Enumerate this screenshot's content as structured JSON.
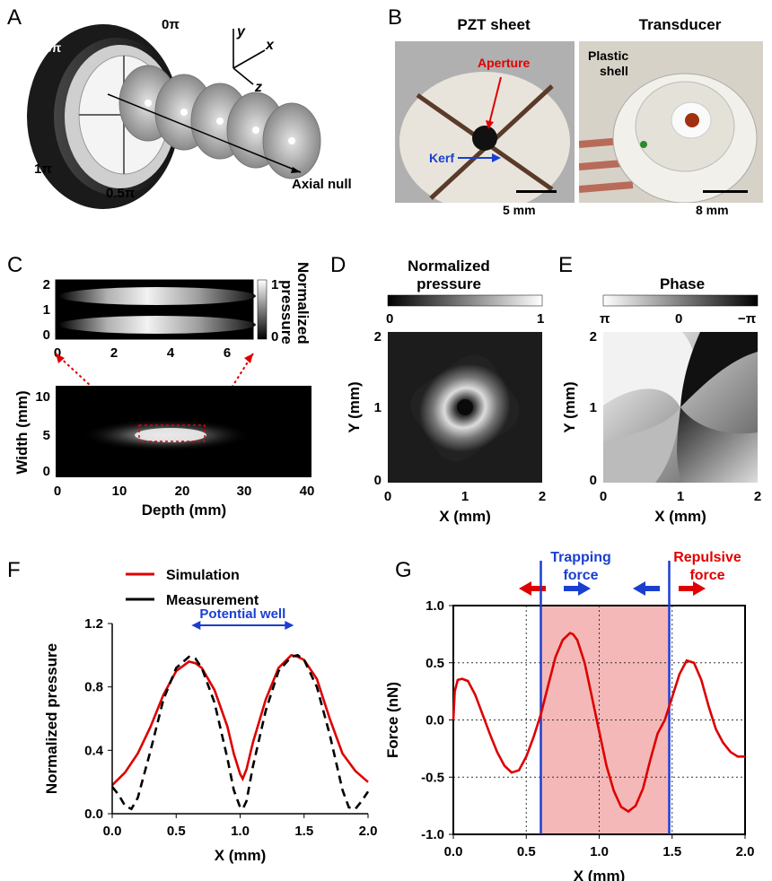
{
  "panels": {
    "A": {
      "letter": "A",
      "labels": {
        "p0": "0π",
        "p15": "1.5π",
        "p1": "1π",
        "p05": "0.5π",
        "axial": "Axial null",
        "ax_y": "y",
        "ax_x": "x",
        "ax_z": "z"
      }
    },
    "B": {
      "letter": "B",
      "pzt_title": "PZT sheet",
      "transducer_title": "Transducer",
      "aperture": "Aperture",
      "kerf": "Kerf",
      "plastic": "Plastic",
      "shell": "shell",
      "scale_left": "5 mm",
      "scale_right": "8 mm"
    },
    "C": {
      "letter": "C",
      "ylabel": "Width (mm)",
      "xlabel": "Depth (mm)",
      "cbar_title_1": "Normalized",
      "cbar_title_2": "pressure",
      "cbar_top": "1",
      "cbar_bottom": "0",
      "top_yticks": [
        "2",
        "1",
        "0"
      ],
      "top_xticks": [
        "0",
        "2",
        "4",
        "6"
      ],
      "bot_yticks": [
        "10",
        "5",
        "0"
      ],
      "bot_xticks": [
        "0",
        "10",
        "20",
        "30",
        "40"
      ]
    },
    "D": {
      "letter": "D",
      "title_1": "Normalized",
      "title_2": "pressure",
      "cbar_left": "0",
      "cbar_right": "1",
      "ylabel": "Y (mm)",
      "xlabel": "X (mm)",
      "yticks": [
        "2",
        "1",
        "0"
      ],
      "xticks": [
        "0",
        "1",
        "2"
      ]
    },
    "E": {
      "letter": "E",
      "title": "Phase",
      "cbar_left": "π",
      "cbar_mid": "0",
      "cbar_right": "−π",
      "ylabel": "Y (mm)",
      "xlabel": "X (mm)",
      "yticks": [
        "2",
        "1",
        "0"
      ],
      "xticks": [
        "0",
        "1",
        "2"
      ]
    }
  },
  "chart_data": [
    {
      "id": "F",
      "type": "line",
      "letter": "F",
      "xlabel": "X (mm)",
      "ylabel": "Normalized pressure",
      "xlim": [
        0,
        2
      ],
      "ylim": [
        0,
        1.2
      ],
      "xticks": [
        "0.0",
        "0.5",
        "1.0",
        "1.5",
        "2.0"
      ],
      "yticks": [
        "0.0",
        "0.4",
        "0.8",
        "1.2"
      ],
      "annotation": "Potential well",
      "legend": "top",
      "series": [
        {
          "name": "Simulation",
          "color": "#dd0000",
          "style": "solid",
          "x": [
            0,
            0.1,
            0.2,
            0.3,
            0.4,
            0.5,
            0.6,
            0.65,
            0.7,
            0.8,
            0.9,
            0.95,
            1.0,
            1.02,
            1.05,
            1.1,
            1.2,
            1.3,
            1.4,
            1.45,
            1.5,
            1.6,
            1.7,
            1.8,
            1.9,
            2.0
          ],
          "y": [
            0.18,
            0.26,
            0.38,
            0.55,
            0.75,
            0.9,
            0.96,
            0.95,
            0.92,
            0.78,
            0.55,
            0.38,
            0.25,
            0.22,
            0.28,
            0.45,
            0.72,
            0.92,
            1.0,
            0.99,
            0.97,
            0.85,
            0.6,
            0.38,
            0.27,
            0.2
          ]
        },
        {
          "name": "Measurement",
          "color": "#000000",
          "style": "dashed",
          "x": [
            0,
            0.05,
            0.1,
            0.15,
            0.2,
            0.3,
            0.4,
            0.5,
            0.6,
            0.65,
            0.7,
            0.8,
            0.9,
            0.95,
            1.0,
            1.02,
            1.05,
            1.1,
            1.2,
            1.3,
            1.4,
            1.45,
            1.5,
            1.6,
            1.7,
            1.8,
            1.85,
            1.9,
            1.95,
            2.0
          ],
          "y": [
            0.17,
            0.12,
            0.05,
            0.03,
            0.1,
            0.4,
            0.72,
            0.92,
            0.99,
            0.98,
            0.92,
            0.7,
            0.35,
            0.15,
            0.04,
            0.03,
            0.08,
            0.3,
            0.65,
            0.9,
            0.99,
            1.0,
            0.97,
            0.8,
            0.5,
            0.15,
            0.04,
            0.03,
            0.08,
            0.14
          ]
        }
      ]
    },
    {
      "id": "G",
      "type": "line",
      "letter": "G",
      "xlabel": "X (mm)",
      "ylabel": "Force (nN)",
      "xlim": [
        0,
        2
      ],
      "ylim": [
        -1,
        1
      ],
      "xticks": [
        "0.0",
        "0.5",
        "1.0",
        "1.5",
        "2.0"
      ],
      "yticks": [
        "1.0",
        "0.5",
        "0.0",
        "-0.5",
        "-1.0"
      ],
      "grid": true,
      "trapping_label_1": "Trapping",
      "trapping_label_2": "force",
      "repulsive_label_1": "Repulsive",
      "repulsive_label_2": "force",
      "trap_region": [
        0.6,
        1.48
      ],
      "trap_color": "#f4b8b8",
      "series": [
        {
          "name": "Force",
          "color": "#dd0000",
          "x": [
            0,
            0.01,
            0.03,
            0.06,
            0.1,
            0.15,
            0.2,
            0.25,
            0.3,
            0.35,
            0.4,
            0.45,
            0.5,
            0.55,
            0.6,
            0.65,
            0.7,
            0.75,
            0.8,
            0.82,
            0.85,
            0.9,
            0.95,
            1.0,
            1.05,
            1.1,
            1.15,
            1.2,
            1.25,
            1.3,
            1.35,
            1.4,
            1.45,
            1.5,
            1.55,
            1.6,
            1.65,
            1.7,
            1.75,
            1.8,
            1.85,
            1.9,
            1.95,
            2.0
          ],
          "y": [
            0.0,
            0.25,
            0.35,
            0.36,
            0.34,
            0.22,
            0.05,
            -0.12,
            -0.28,
            -0.4,
            -0.46,
            -0.44,
            -0.32,
            -0.15,
            0.05,
            0.3,
            0.55,
            0.7,
            0.76,
            0.75,
            0.7,
            0.5,
            0.2,
            -0.1,
            -0.4,
            -0.62,
            -0.76,
            -0.8,
            -0.75,
            -0.6,
            -0.35,
            -0.12,
            0.0,
            0.2,
            0.4,
            0.52,
            0.5,
            0.35,
            0.12,
            -0.08,
            -0.2,
            -0.28,
            -0.32,
            -0.32
          ]
        }
      ]
    }
  ]
}
